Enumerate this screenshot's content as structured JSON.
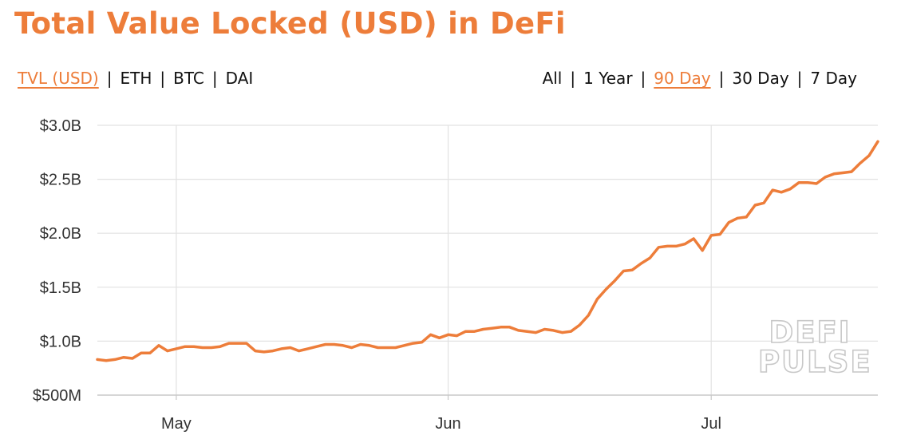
{
  "page": {
    "title": "Total Value Locked (USD) in DeFi",
    "metric_tabs": [
      {
        "label": "TVL (USD)",
        "active": true
      },
      {
        "label": "ETH",
        "active": false
      },
      {
        "label": "BTC",
        "active": false
      },
      {
        "label": "DAI",
        "active": false
      }
    ],
    "range_tabs": [
      {
        "label": "All",
        "active": false
      },
      {
        "label": "1 Year",
        "active": false
      },
      {
        "label": "90 Day",
        "active": true
      },
      {
        "label": "30 Day",
        "active": false
      },
      {
        "label": "7 Day",
        "active": false
      }
    ],
    "watermark": [
      "DEFI",
      "PULSE"
    ],
    "accent_color": "#ed7d3a"
  },
  "chart_data": {
    "type": "line",
    "title": "Total Value Locked (USD) in DeFi",
    "xlabel": "",
    "ylabel": "",
    "ylim": [
      0.5,
      3.0
    ],
    "y_unit": "billion USD",
    "y_ticks": [
      {
        "value": 0.5,
        "label": "$500M"
      },
      {
        "value": 1.0,
        "label": "$1.0B"
      },
      {
        "value": 1.5,
        "label": "$1.5B"
      },
      {
        "value": 2.0,
        "label": "$2.0B"
      },
      {
        "value": 2.5,
        "label": "$2.5B"
      },
      {
        "value": 3.0,
        "label": "$3.0B"
      }
    ],
    "x_range": [
      "2020-04-22",
      "2020-07-20"
    ],
    "x_ticks": [
      {
        "date": "2020-05-01",
        "label": "May"
      },
      {
        "date": "2020-06-01",
        "label": "Jun"
      },
      {
        "date": "2020-07-01",
        "label": "Jul"
      }
    ],
    "grid": true,
    "legend": "none",
    "color": "#ed7d3a",
    "series": [
      {
        "x": [
          "2020-04-22",
          "2020-04-23",
          "2020-04-24",
          "2020-04-25",
          "2020-04-26",
          "2020-04-27",
          "2020-04-28",
          "2020-04-29",
          "2020-04-30",
          "2020-05-01",
          "2020-05-02",
          "2020-05-03",
          "2020-05-04",
          "2020-05-05",
          "2020-05-06",
          "2020-05-07",
          "2020-05-08",
          "2020-05-09",
          "2020-05-10",
          "2020-05-11",
          "2020-05-12",
          "2020-05-13",
          "2020-05-14",
          "2020-05-15",
          "2020-05-16",
          "2020-05-17",
          "2020-05-18",
          "2020-05-19",
          "2020-05-20",
          "2020-05-21",
          "2020-05-22",
          "2020-05-23",
          "2020-05-24",
          "2020-05-25",
          "2020-05-26",
          "2020-05-27",
          "2020-05-28",
          "2020-05-29",
          "2020-05-30",
          "2020-05-31",
          "2020-06-01",
          "2020-06-02",
          "2020-06-03",
          "2020-06-04",
          "2020-06-05",
          "2020-06-06",
          "2020-06-07",
          "2020-06-08",
          "2020-06-09",
          "2020-06-10",
          "2020-06-11",
          "2020-06-12",
          "2020-06-13",
          "2020-06-14",
          "2020-06-15",
          "2020-06-16",
          "2020-06-17",
          "2020-06-18",
          "2020-06-19",
          "2020-06-20",
          "2020-06-21",
          "2020-06-22",
          "2020-06-23",
          "2020-06-24",
          "2020-06-25",
          "2020-06-26",
          "2020-06-27",
          "2020-06-28",
          "2020-06-29",
          "2020-06-30",
          "2020-07-01",
          "2020-07-02",
          "2020-07-03",
          "2020-07-04",
          "2020-07-05",
          "2020-07-06",
          "2020-07-07",
          "2020-07-08",
          "2020-07-09",
          "2020-07-10",
          "2020-07-11",
          "2020-07-12",
          "2020-07-13",
          "2020-07-14",
          "2020-07-15",
          "2020-07-16",
          "2020-07-17",
          "2020-07-18",
          "2020-07-19",
          "2020-07-20"
        ],
        "values": [
          0.83,
          0.82,
          0.83,
          0.85,
          0.84,
          0.89,
          0.89,
          0.96,
          0.91,
          0.93,
          0.95,
          0.95,
          0.94,
          0.94,
          0.95,
          0.98,
          0.98,
          0.98,
          0.91,
          0.9,
          0.91,
          0.93,
          0.94,
          0.91,
          0.93,
          0.95,
          0.97,
          0.97,
          0.96,
          0.94,
          0.97,
          0.96,
          0.94,
          0.94,
          0.94,
          0.96,
          0.98,
          0.99,
          1.06,
          1.03,
          1.06,
          1.05,
          1.09,
          1.09,
          1.11,
          1.12,
          1.13,
          1.13,
          1.1,
          1.09,
          1.08,
          1.11,
          1.1,
          1.08,
          1.09,
          1.15,
          1.24,
          1.39,
          1.48,
          1.56,
          1.65,
          1.66,
          1.72,
          1.77,
          1.87,
          1.88,
          1.88,
          1.9,
          1.95,
          1.84,
          1.98,
          1.99,
          2.1,
          2.14,
          2.15,
          2.26,
          2.28,
          2.4,
          2.38,
          2.41,
          2.47,
          2.47,
          2.46,
          2.52,
          2.55,
          2.56,
          2.57,
          2.65,
          2.72,
          2.85
        ]
      }
    ]
  }
}
